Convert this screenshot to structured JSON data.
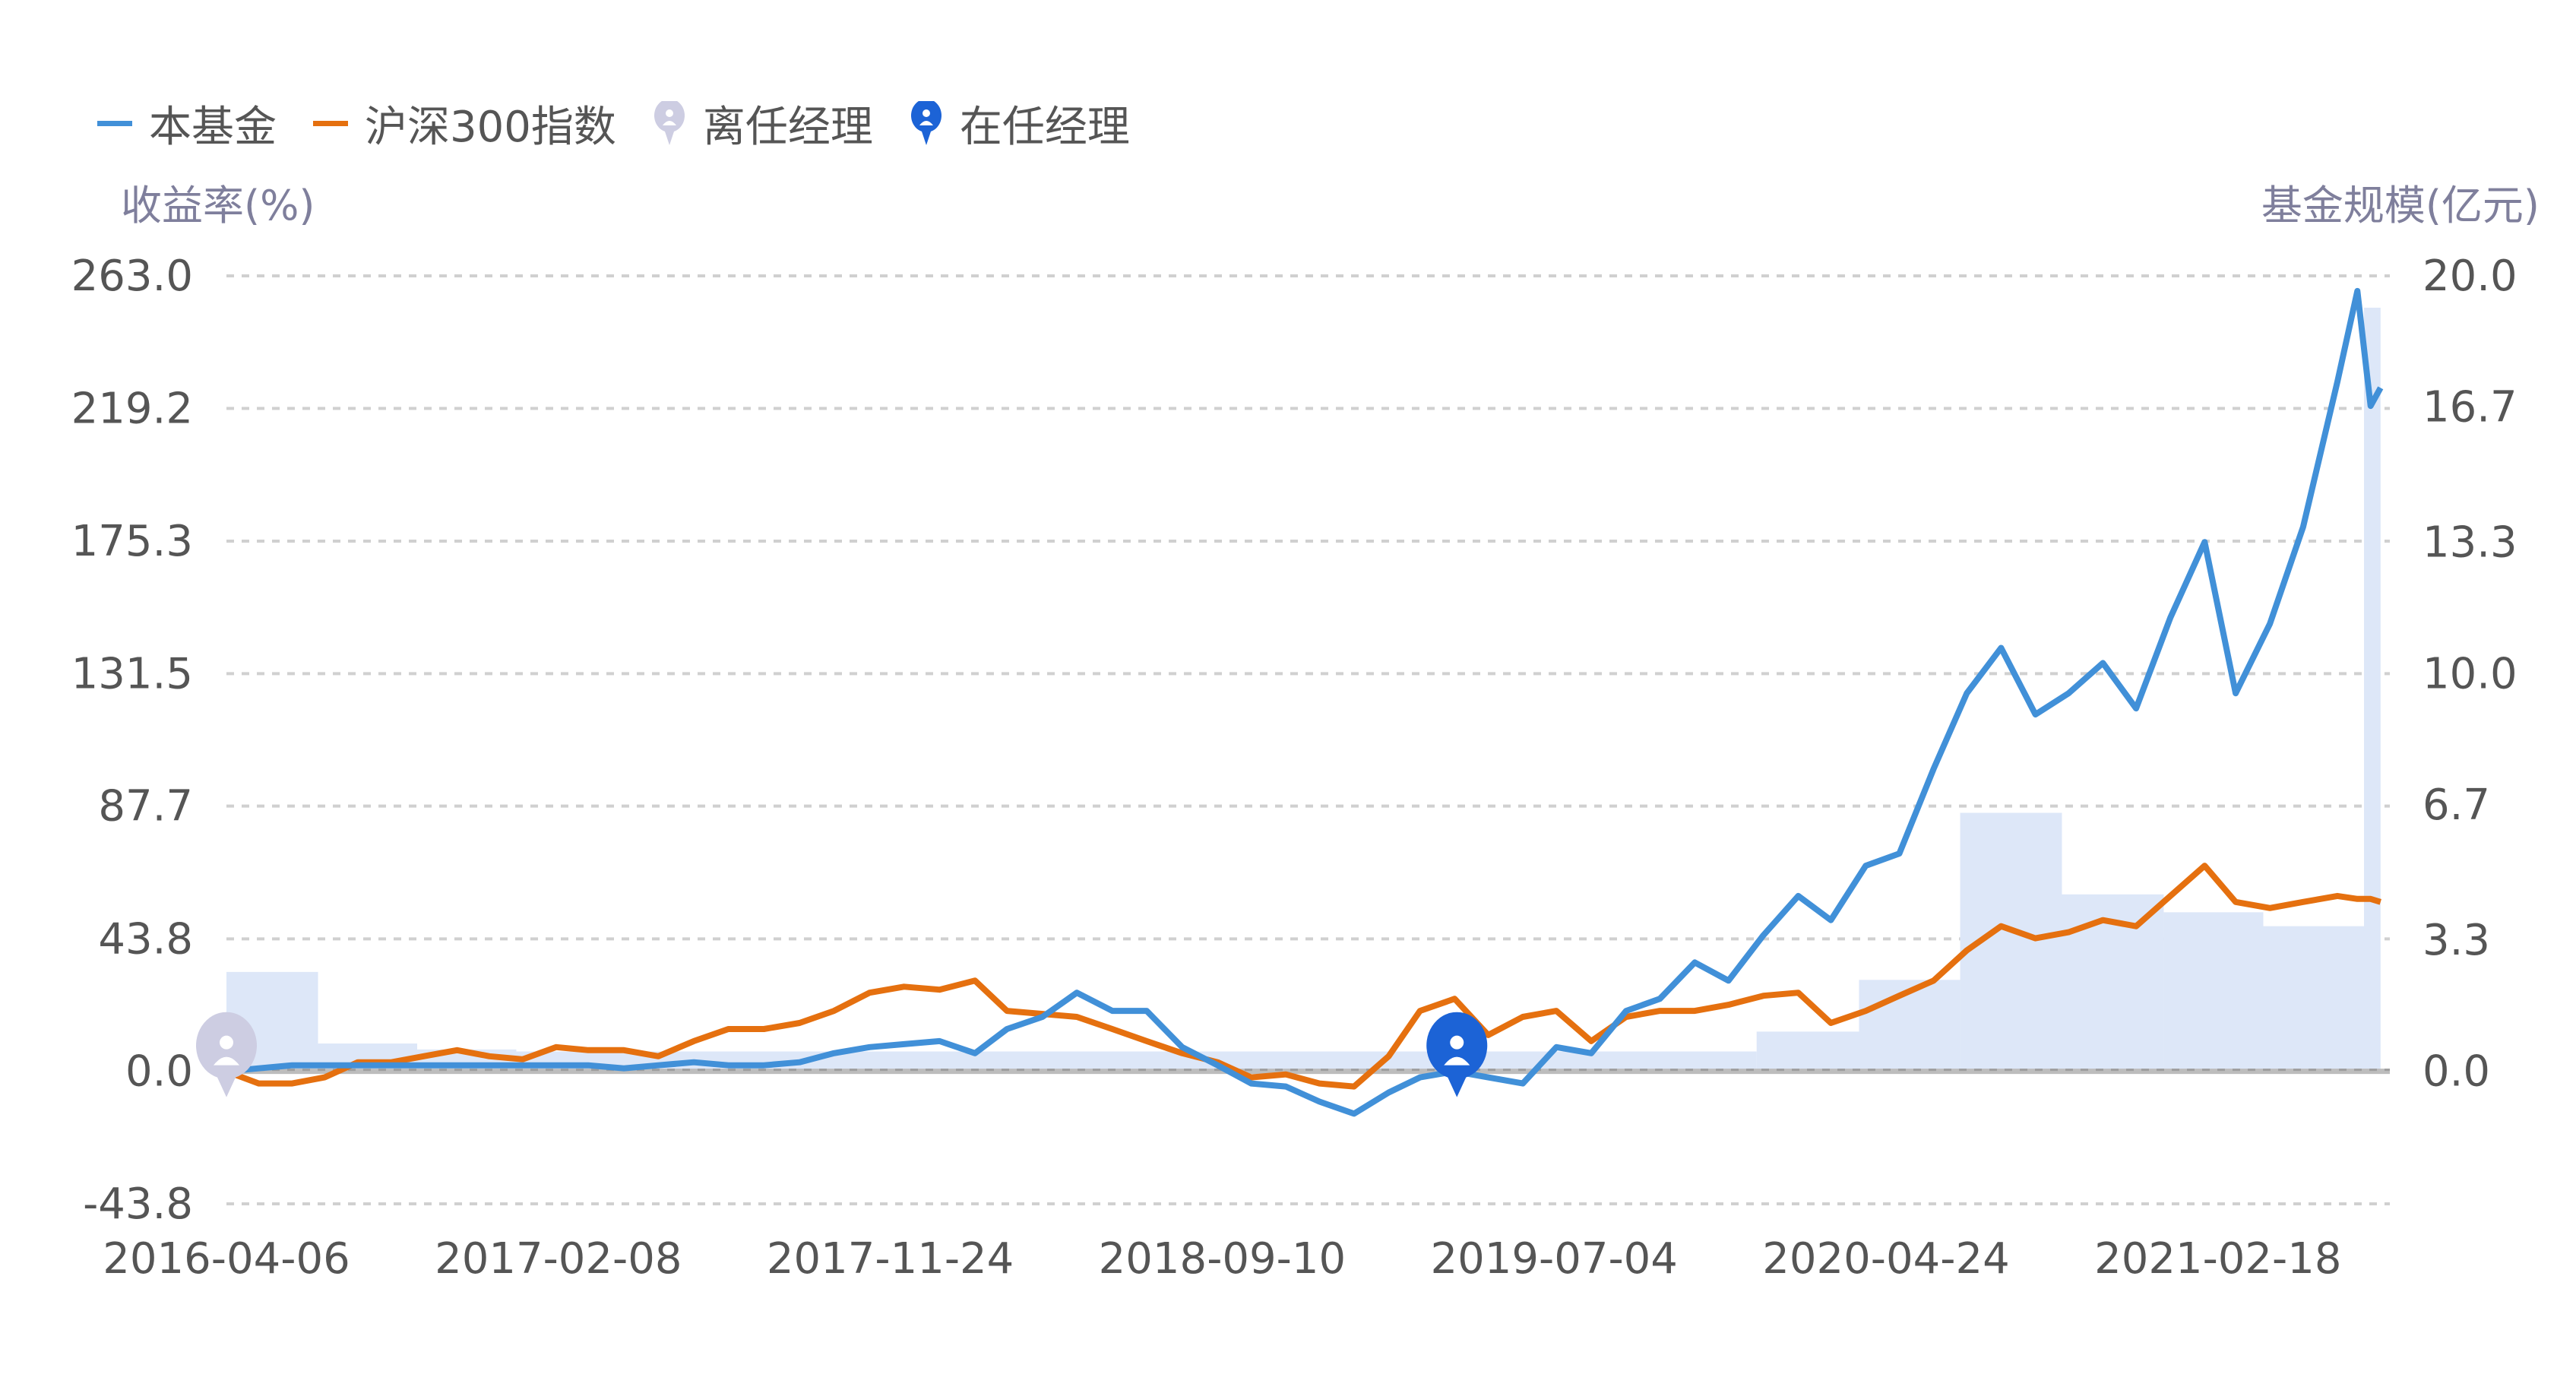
{
  "legend": [
    {
      "label": "本基金",
      "icon": "line-swatch",
      "color": "#4190d8"
    },
    {
      "label": "沪深300指数",
      "icon": "line-swatch",
      "color": "#e5700f"
    },
    {
      "label": "离任经理",
      "icon": "person-pin-icon",
      "color": "#cdcde2"
    },
    {
      "label": "在任经理",
      "icon": "person-pin-icon",
      "color": "#1c63d6"
    }
  ],
  "chart_data": {
    "type": "line",
    "ylabel": "收益率(%)",
    "ylabel_right": "基金规模(亿元)",
    "ylim": [
      -43.8,
      263.0
    ],
    "ylim_right": [
      0,
      20.0
    ],
    "yticks": [
      "263.0",
      "219.2",
      "175.3",
      "131.5",
      "87.7",
      "43.8",
      "0.0",
      "-43.8"
    ],
    "yticks_right": [
      "20.0",
      "16.7",
      "13.3",
      "10.0",
      "6.7",
      "3.3",
      "0.0"
    ],
    "xticks": [
      "2016-04-06",
      "2017-02-08",
      "2017-11-24",
      "2018-09-10",
      "2019-07-04",
      "2020-04-24",
      "2021-02-18"
    ],
    "grid": true,
    "legend_position": "top-left",
    "colors": {
      "fund": "#4190d8",
      "index": "#e5700f",
      "size_area": "#dde7f8",
      "former_manager": "#cdcde2",
      "current_manager": "#1c63d6"
    },
    "dates": [
      "2016-04-06",
      "2016-05-06",
      "2016-06-06",
      "2016-07-06",
      "2016-08-06",
      "2016-09-06",
      "2016-10-06",
      "2016-11-06",
      "2016-12-06",
      "2017-01-06",
      "2017-02-06",
      "2017-03-06",
      "2017-04-06",
      "2017-05-06",
      "2017-06-06",
      "2017-07-06",
      "2017-08-06",
      "2017-09-06",
      "2017-10-06",
      "2017-11-06",
      "2017-12-06",
      "2018-01-06",
      "2018-02-06",
      "2018-03-06",
      "2018-04-06",
      "2018-05-06",
      "2018-06-06",
      "2018-07-06",
      "2018-08-06",
      "2018-09-06",
      "2018-10-06",
      "2018-11-06",
      "2018-12-06",
      "2019-01-06",
      "2019-02-06",
      "2019-03-06",
      "2019-04-06",
      "2019-05-06",
      "2019-06-06",
      "2019-07-06",
      "2019-08-06",
      "2019-09-06",
      "2019-10-06",
      "2019-11-06",
      "2019-12-06",
      "2020-01-06",
      "2020-02-06",
      "2020-03-06",
      "2020-04-06",
      "2020-05-06",
      "2020-06-06",
      "2020-07-06",
      "2020-08-06",
      "2020-09-06",
      "2020-10-06",
      "2020-11-06",
      "2020-12-06",
      "2021-01-06",
      "2021-02-06",
      "2021-03-06",
      "2021-04-06",
      "2021-05-06",
      "2021-06-06",
      "2021-06-24",
      "2021-07-06",
      "2021-07-15"
    ],
    "series": [
      {
        "name": "本基金",
        "axis": "left",
        "values": [
          0,
          1,
          2,
          2,
          2,
          2,
          2,
          2,
          2,
          2,
          2,
          2,
          1,
          2,
          3,
          2,
          2,
          3,
          6,
          8,
          9,
          10,
          6,
          14,
          18,
          26,
          20,
          20,
          8,
          2,
          -4,
          -5,
          -10,
          -14,
          -7,
          -2,
          0,
          -2,
          -4,
          8,
          6,
          20,
          24,
          36,
          30,
          45,
          58,
          50,
          68,
          72,
          100,
          125,
          140,
          118,
          125,
          135,
          120,
          150,
          175,
          125,
          148,
          180,
          228,
          258,
          220,
          226
        ]
      },
      {
        "name": "沪深300指数",
        "axis": "left",
        "values": [
          0,
          -4,
          -4,
          -2,
          3,
          3,
          5,
          7,
          5,
          4,
          8,
          7,
          7,
          5,
          10,
          14,
          14,
          16,
          20,
          26,
          28,
          27,
          30,
          20,
          19,
          18,
          14,
          10,
          6,
          3,
          -2,
          -1,
          -4,
          -5,
          5,
          20,
          24,
          12,
          18,
          20,
          10,
          18,
          20,
          20,
          22,
          25,
          26,
          16,
          20,
          25,
          30,
          40,
          48,
          44,
          46,
          50,
          48,
          58,
          68,
          56,
          54,
          56,
          58,
          57,
          57,
          56
        ]
      }
    ],
    "fund_size": {
      "axis": "right",
      "dates": [
        "2016-04-06",
        "2016-06-30",
        "2016-09-30",
        "2016-12-31",
        "2019-12-31",
        "2020-03-31",
        "2020-06-30",
        "2020-09-30",
        "2020-12-31",
        "2021-03-31",
        "2021-06-30"
      ],
      "values": [
        2.5,
        0.7,
        0.55,
        0.5,
        1.0,
        2.3,
        6.5,
        4.45,
        4.0,
        3.65,
        19.2
      ]
    },
    "manager_markers": [
      {
        "type": "离任经理",
        "date": "2016-04-06"
      },
      {
        "type": "在任经理",
        "date": "2019-04-08"
      }
    ]
  }
}
